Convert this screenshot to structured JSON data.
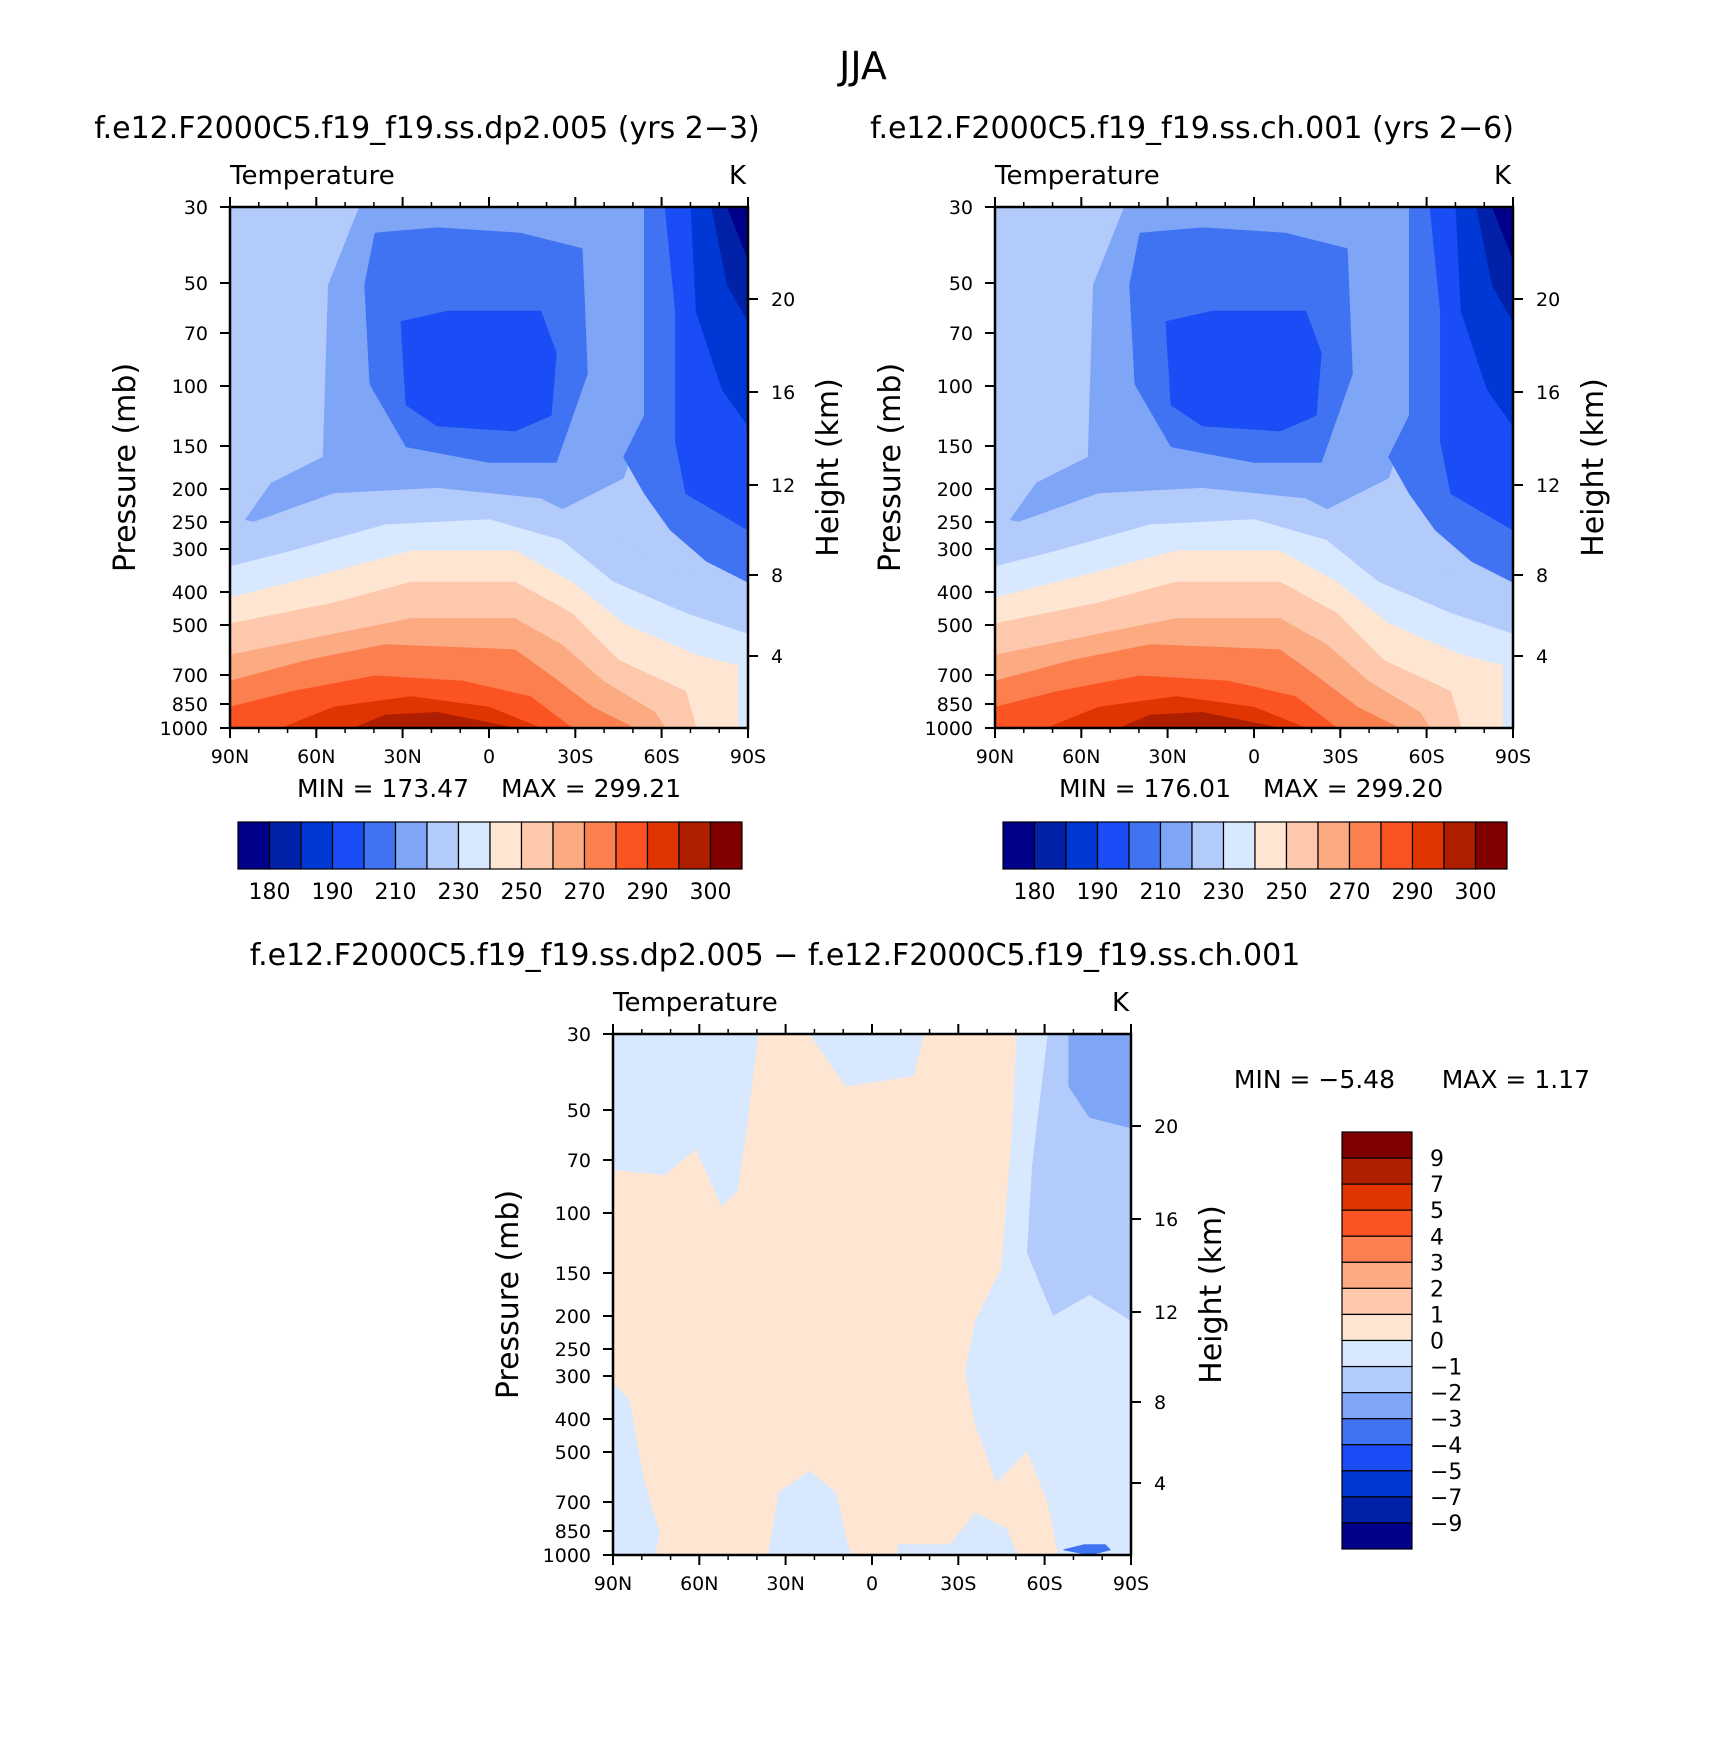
{
  "title": "JJA",
  "palette": [
    "#00008b",
    "#0021a8",
    "#0038d6",
    "#1a4df5",
    "#4073f2",
    "#7fa5f7",
    "#b3cbfb",
    "#d7e8ff",
    "#fee6d2",
    "#fdc8ab",
    "#fcaa82",
    "#fc7f4f",
    "#fb5322",
    "#e03500",
    "#b01e00",
    "#800000"
  ],
  "chart_data": [
    {
      "type": "heatmap",
      "title": "f.e12.F2000C5.f19_f19.ss.dp2.005 (yrs 2−3)",
      "variable": "Temperature",
      "units": "K",
      "ylabel": "Pressure (mb)",
      "ylabel_right": "Height (km)",
      "x_ticks": [
        "90N",
        "60N",
        "30N",
        "0",
        "30S",
        "60S",
        "90S"
      ],
      "y_ticks": [
        "30",
        "50",
        "70",
        "100",
        "150",
        "200",
        "250",
        "300",
        "400",
        "500",
        "700",
        "850",
        "1000"
      ],
      "y_ticks_right": [
        "20",
        "16",
        "12",
        "8",
        "4"
      ],
      "ylim": [
        1000,
        30
      ],
      "xlim": [
        90,
        -90
      ],
      "log_y": true,
      "min_label": "MIN = 173.47",
      "max_label": "MAX = 299.21",
      "colorbar_labels": [
        "180",
        "190",
        "210",
        "230",
        "250",
        "270",
        "290",
        "300"
      ],
      "colorbar_orientation": "horizontal"
    },
    {
      "type": "heatmap",
      "title": "f.e12.F2000C5.f19_f19.ss.ch.001 (yrs 2−6)",
      "variable": "Temperature",
      "units": "K",
      "ylabel": "Pressure (mb)",
      "ylabel_right": "Height (km)",
      "x_ticks": [
        "90N",
        "60N",
        "30N",
        "0",
        "30S",
        "60S",
        "90S"
      ],
      "y_ticks": [
        "30",
        "50",
        "70",
        "100",
        "150",
        "200",
        "250",
        "300",
        "400",
        "500",
        "700",
        "850",
        "1000"
      ],
      "y_ticks_right": [
        "20",
        "16",
        "12",
        "8",
        "4"
      ],
      "ylim": [
        1000,
        30
      ],
      "xlim": [
        90,
        -90
      ],
      "log_y": true,
      "min_label": "MIN = 176.01",
      "max_label": "MAX = 299.20",
      "colorbar_labels": [
        "180",
        "190",
        "210",
        "230",
        "250",
        "270",
        "290",
        "300"
      ],
      "colorbar_orientation": "horizontal"
    },
    {
      "type": "heatmap",
      "title": "f.e12.F2000C5.f19_f19.ss.dp2.005 − f.e12.F2000C5.f19_f19.ss.ch.001",
      "variable": "Temperature",
      "units": "K",
      "ylabel": "Pressure (mb)",
      "ylabel_right": "Height (km)",
      "x_ticks": [
        "90N",
        "60N",
        "30N",
        "0",
        "30S",
        "60S",
        "90S"
      ],
      "y_ticks": [
        "30",
        "50",
        "70",
        "100",
        "150",
        "200",
        "250",
        "300",
        "400",
        "500",
        "700",
        "850",
        "1000"
      ],
      "y_ticks_right": [
        "20",
        "16",
        "12",
        "8",
        "4"
      ],
      "ylim": [
        1000,
        30
      ],
      "xlim": [
        90,
        -90
      ],
      "log_y": true,
      "min_label": "MIN = −5.48",
      "max_label": "MAX = 1.17",
      "colorbar_labels": [
        "9",
        "7",
        "5",
        "4",
        "3",
        "2",
        "1",
        "0",
        "−1",
        "−2",
        "−3",
        "−4",
        "−5",
        "−7",
        "−9"
      ],
      "colorbar_orientation": "vertical"
    }
  ]
}
